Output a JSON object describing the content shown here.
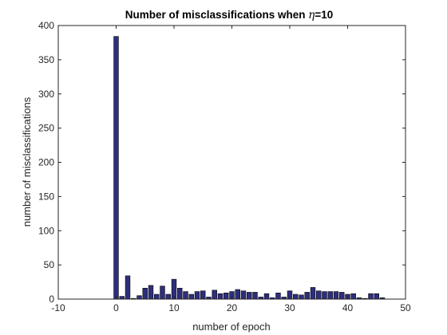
{
  "chart_data": {
    "type": "bar",
    "title_prefix": "Number of misclassifications when ",
    "title_symbol": "η",
    "title_suffix": "=10",
    "xlabel": "number of epoch",
    "ylabel": "number of misclassifications",
    "xlim": [
      -10,
      50
    ],
    "ylim": [
      0,
      400
    ],
    "xticks": [
      -10,
      0,
      10,
      20,
      30,
      40,
      50
    ],
    "yticks": [
      0,
      50,
      100,
      150,
      200,
      250,
      300,
      350,
      400
    ],
    "grid": false,
    "legend": "none",
    "bar_color": "#2e2e7e",
    "bar_edge_color": "#000000",
    "x": [
      0,
      1,
      2,
      3,
      4,
      5,
      6,
      7,
      8,
      9,
      10,
      11,
      12,
      13,
      14,
      15,
      16,
      17,
      18,
      19,
      20,
      21,
      22,
      23,
      24,
      25,
      26,
      27,
      28,
      29,
      30,
      31,
      32,
      33,
      34,
      35,
      36,
      37,
      38,
      39,
      40,
      41,
      42,
      43,
      44,
      45,
      46
    ],
    "values": [
      384,
      4,
      34,
      1,
      5,
      16,
      20,
      7,
      19,
      7,
      29,
      16,
      11,
      7,
      11,
      12,
      3,
      13,
      8,
      9,
      11,
      14,
      12,
      10,
      10,
      3,
      8,
      2,
      9,
      3,
      12,
      7,
      6,
      10,
      17,
      12,
      11,
      11,
      11,
      10,
      7,
      8,
      2,
      1,
      8,
      8,
      2
    ]
  }
}
